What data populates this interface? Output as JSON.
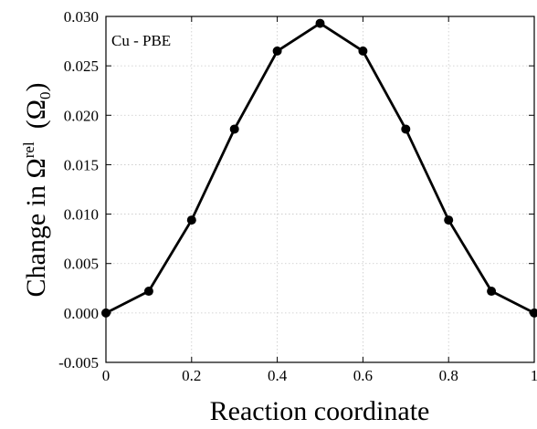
{
  "chart_data": {
    "type": "line",
    "annotation": "Cu - PBE",
    "xlabel": "Reaction coordinate",
    "ylabel": {
      "prefix": "Change in Ω",
      "superscript": "rel",
      "unit_open": "(Ω",
      "unit_subscript": "0",
      "unit_close": ")"
    },
    "xlim": [
      0,
      1
    ],
    "ylim": [
      -0.005,
      0.03
    ],
    "grid": true,
    "x_ticks": [
      {
        "value": 0,
        "label": "0"
      },
      {
        "value": 0.2,
        "label": "0.2"
      },
      {
        "value": 0.4,
        "label": "0.4"
      },
      {
        "value": 0.6,
        "label": "0.6"
      },
      {
        "value": 0.8,
        "label": "0.8"
      },
      {
        "value": 1,
        "label": "1"
      }
    ],
    "y_ticks": [
      {
        "value": -0.005,
        "label": "-0.005"
      },
      {
        "value": 0,
        "label": "0.000"
      },
      {
        "value": 0.005,
        "label": "0.005"
      },
      {
        "value": 0.01,
        "label": "0.010"
      },
      {
        "value": 0.015,
        "label": "0.015"
      },
      {
        "value": 0.02,
        "label": "0.020"
      },
      {
        "value": 0.025,
        "label": "0.025"
      },
      {
        "value": 0.03,
        "label": "0.030"
      }
    ],
    "series": [
      {
        "color": "#000000",
        "marker": "circle",
        "x": [
          0,
          0.1,
          0.2,
          0.3,
          0.4,
          0.5,
          0.6,
          0.7,
          0.8,
          0.9,
          1.0
        ],
        "y": [
          0.0,
          0.0022,
          0.0094,
          0.0186,
          0.0265,
          0.0293,
          0.0265,
          0.0186,
          0.0094,
          0.0022,
          0.0
        ]
      }
    ]
  }
}
